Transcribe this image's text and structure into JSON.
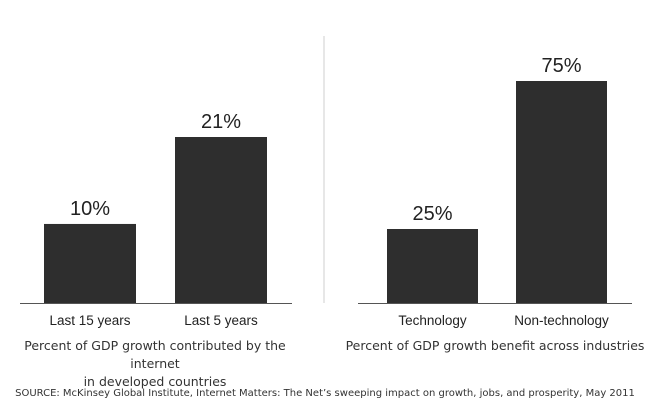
{
  "chart_data": [
    {
      "type": "bar",
      "categories": [
        "Last 15 years",
        "Last 5 years"
      ],
      "values": [
        10,
        21
      ],
      "data_labels": [
        "10%",
        "21%"
      ],
      "title": "",
      "caption": "Percent of GDP growth contributed by the internet in developed countries",
      "caption_lines": [
        "Percent of GDP growth contributed by the internet",
        "in developed countries"
      ],
      "xlabel": "",
      "ylabel": "",
      "ylim": [
        0,
        30
      ],
      "grid": false,
      "bar_color": "#2e2e2e"
    },
    {
      "type": "bar",
      "categories": [
        "Technology",
        "Non-technology"
      ],
      "values": [
        25,
        75
      ],
      "data_labels": [
        "25%",
        "75%"
      ],
      "title": "",
      "caption": "Percent of GDP growth benefit across industries",
      "caption_lines": [
        "Percent of GDP growth benefit across industries"
      ],
      "xlabel": "",
      "ylabel": "",
      "ylim": [
        0,
        85
      ],
      "grid": false,
      "bar_color": "#2e2e2e"
    }
  ],
  "source": "SOURCE: McKinsey Global Institute, Internet Matters: The Net’s sweeping impact on growth, jobs, and prosperity, May 2011",
  "colors": {
    "bar": "#2e2e2e",
    "axis": "#555555",
    "divider": "#cfcfcf",
    "text": "#222222"
  }
}
